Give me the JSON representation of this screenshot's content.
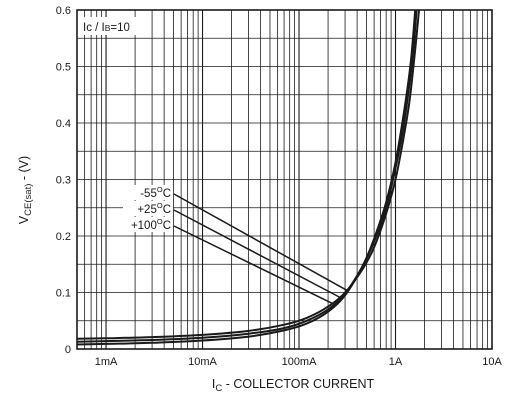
{
  "chart_data": {
    "type": "line",
    "title": "",
    "annotation": {
      "main": "Ic / I",
      "sub": "B",
      "suffix": "=10"
    },
    "ylabel": {
      "main": "V",
      "sub": "CE(sat)",
      "suffix": " - (V)"
    },
    "xlabel": {
      "main": "I",
      "sub": "C",
      "suffix": " - COLLECTOR CURRENT"
    },
    "xscale": "log",
    "xlim": [
      0.0005,
      10
    ],
    "ylim": [
      0,
      0.6
    ],
    "grid": true,
    "x_ticks": [
      {
        "value": 0.001,
        "label": "1mA"
      },
      {
        "value": 0.01,
        "label": "10mA"
      },
      {
        "value": 0.1,
        "label": "100mA"
      },
      {
        "value": 1,
        "label": "1A"
      },
      {
        "value": 10,
        "label": "10A"
      }
    ],
    "y_ticks": [
      {
        "value": 0,
        "label": "0"
      },
      {
        "value": 0.1,
        "label": "0.1"
      },
      {
        "value": 0.2,
        "label": "0.2"
      },
      {
        "value": 0.3,
        "label": "0.3"
      },
      {
        "value": 0.4,
        "label": "0.4"
      },
      {
        "value": 0.5,
        "label": "0.5"
      },
      {
        "value": 0.6,
        "label": "0.6"
      }
    ],
    "series": [
      {
        "name": "-55°C",
        "label": {
          "main": "-55",
          "deg": "O",
          "unit": "C"
        },
        "x": [
          0.0005,
          0.001,
          0.003,
          0.01,
          0.03,
          0.07,
          0.12,
          0.2,
          0.3,
          0.45,
          0.6,
          0.8,
          1.0,
          1.2,
          1.4,
          1.5,
          1.6
        ],
        "y": [
          0.008,
          0.009,
          0.011,
          0.015,
          0.022,
          0.033,
          0.045,
          0.066,
          0.095,
          0.145,
          0.195,
          0.26,
          0.33,
          0.41,
          0.49,
          0.54,
          0.6
        ]
      },
      {
        "name": "+25°C",
        "label": {
          "main": "+25",
          "deg": "O",
          "unit": "C"
        },
        "x": [
          0.0005,
          0.001,
          0.003,
          0.01,
          0.03,
          0.07,
          0.12,
          0.2,
          0.3,
          0.45,
          0.6,
          0.8,
          1.0,
          1.2,
          1.4,
          1.55,
          1.65
        ],
        "y": [
          0.013,
          0.014,
          0.016,
          0.02,
          0.027,
          0.037,
          0.05,
          0.07,
          0.098,
          0.145,
          0.19,
          0.25,
          0.32,
          0.39,
          0.47,
          0.54,
          0.6
        ]
      },
      {
        "name": "+100°C",
        "label": {
          "main": "+100",
          "deg": "O",
          "unit": "C"
        },
        "x": [
          0.0005,
          0.001,
          0.003,
          0.01,
          0.03,
          0.07,
          0.12,
          0.2,
          0.3,
          0.45,
          0.6,
          0.8,
          1.0,
          1.2,
          1.4,
          1.6,
          1.75
        ],
        "y": [
          0.018,
          0.019,
          0.021,
          0.025,
          0.032,
          0.043,
          0.055,
          0.075,
          0.1,
          0.14,
          0.18,
          0.24,
          0.3,
          0.37,
          0.44,
          0.53,
          0.6
        ]
      }
    ]
  }
}
